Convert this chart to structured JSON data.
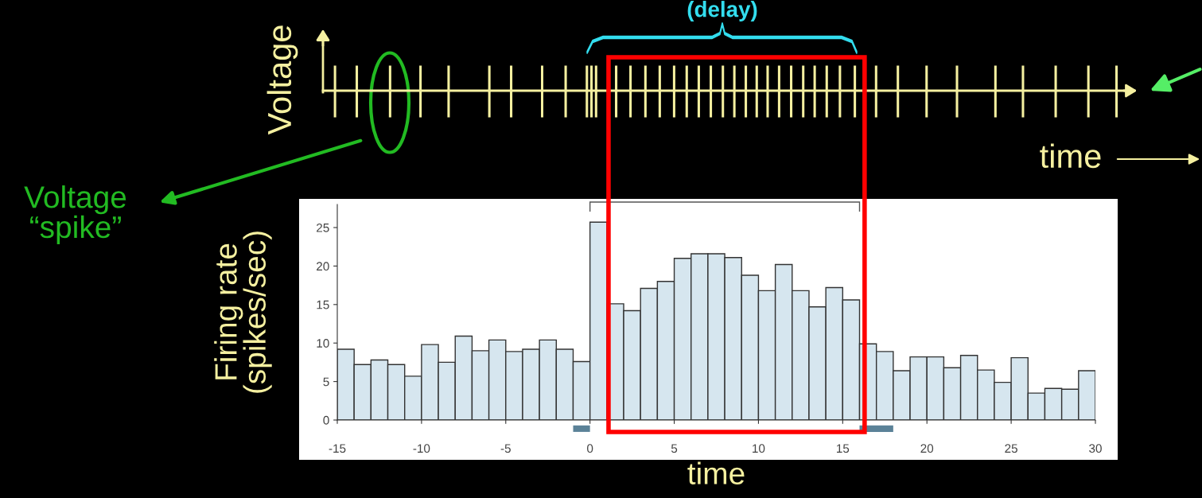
{
  "chart_data": {
    "type": "histogram",
    "bins": [
      -15,
      -14,
      -13,
      -12,
      -11,
      -10,
      -9,
      -8,
      -7,
      -6,
      -5,
      -4,
      -3,
      -2,
      -1,
      0,
      1,
      2,
      3,
      4,
      5,
      6,
      7,
      8,
      9,
      10,
      11,
      12,
      13,
      14,
      15,
      16,
      17,
      18,
      19,
      20,
      21,
      22,
      23,
      24,
      25,
      26,
      27,
      28,
      29,
      30
    ],
    "values": [
      9.2,
      7.2,
      7.8,
      7.2,
      5.7,
      9.8,
      7.5,
      10.9,
      9.0,
      10.4,
      8.9,
      9.2,
      10.4,
      9.2,
      7.6,
      25.7,
      15.1,
      14.2,
      17.1,
      18.0,
      21.0,
      21.6,
      21.6,
      21.1,
      18.8,
      16.8,
      20.2,
      16.8,
      14.7,
      17.2,
      15.6,
      9.9,
      8.9,
      6.4,
      8.2,
      8.2,
      6.8,
      8.4,
      6.5,
      4.9,
      8.1,
      3.5,
      4.1,
      4.0,
      6.4
    ],
    "color": "#d6e6ef",
    "xlabel": "time",
    "ylabel": "Firing rate\n(spikes/sec)",
    "xlim": [
      -15,
      30
    ],
    "xticks": [
      {
        "value": -15,
        "label": "-15"
      },
      {
        "value": -10,
        "label": "-10"
      },
      {
        "value": -5,
        "label": "-5"
      },
      0,
      5,
      10,
      15,
      20,
      25,
      30
    ],
    "ylim": [
      0,
      28
    ],
    "yticks": [
      0,
      5,
      10,
      15,
      20,
      25
    ],
    "annotations": [
      "Voltage",
      "time",
      "(delay)",
      "Voltage\n“spike”"
    ],
    "grid": false,
    "legend": false
  }
}
